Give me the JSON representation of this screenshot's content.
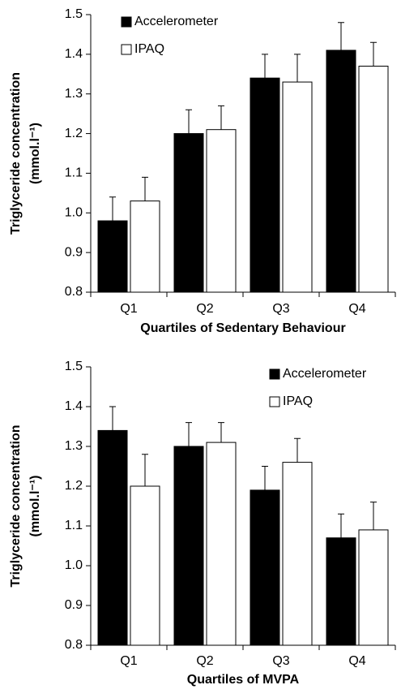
{
  "chart_data": [
    {
      "type": "bar",
      "y_label": [
        "Triglyceride concentration",
        "(mmol.l⁻¹)"
      ],
      "x_label": "Quartiles of Sedentary Behaviour",
      "categories": [
        "Q1",
        "Q2",
        "Q3",
        "Q4"
      ],
      "series": [
        {
          "name": "Accelerometer",
          "color": "#000000",
          "values": [
            0.98,
            1.2,
            1.34,
            1.41
          ],
          "errors": [
            0.06,
            0.06,
            0.06,
            0.07
          ]
        },
        {
          "name": "IPAQ",
          "color": "#ffffff",
          "values": [
            1.03,
            1.21,
            1.33,
            1.37
          ],
          "errors": [
            0.06,
            0.06,
            0.07,
            0.06
          ]
        }
      ],
      "ylim": [
        0.8,
        1.5
      ],
      "yticks": [
        0.8,
        0.9,
        {
          "value": 1,
          "label": "1.0"
        },
        1.1,
        1.2,
        1.3,
        1.4,
        1.5
      ],
      "legend": "top-left"
    },
    {
      "type": "bar",
      "y_label": [
        "Triglyceride concentration",
        "(mmol.l⁻¹)"
      ],
      "x_label": "Quartiles of MVPA",
      "categories": [
        "Q1",
        "Q2",
        "Q3",
        "Q4"
      ],
      "series": [
        {
          "name": "Accelerometer",
          "color": "#000000",
          "values": [
            1.34,
            1.3,
            1.19,
            1.07
          ],
          "errors": [
            0.06,
            0.06,
            0.06,
            0.06
          ]
        },
        {
          "name": "IPAQ",
          "color": "#ffffff",
          "values": [
            1.2,
            1.31,
            1.26,
            1.09
          ],
          "errors": [
            0.08,
            0.05,
            0.06,
            0.07
          ]
        }
      ],
      "ylim": [
        0.8,
        1.5
      ],
      "yticks": [
        0.8,
        0.9,
        {
          "value": 1,
          "label": "1.0"
        },
        1.1,
        1.2,
        1.3,
        1.4,
        1.5
      ],
      "legend": "top-right"
    }
  ]
}
